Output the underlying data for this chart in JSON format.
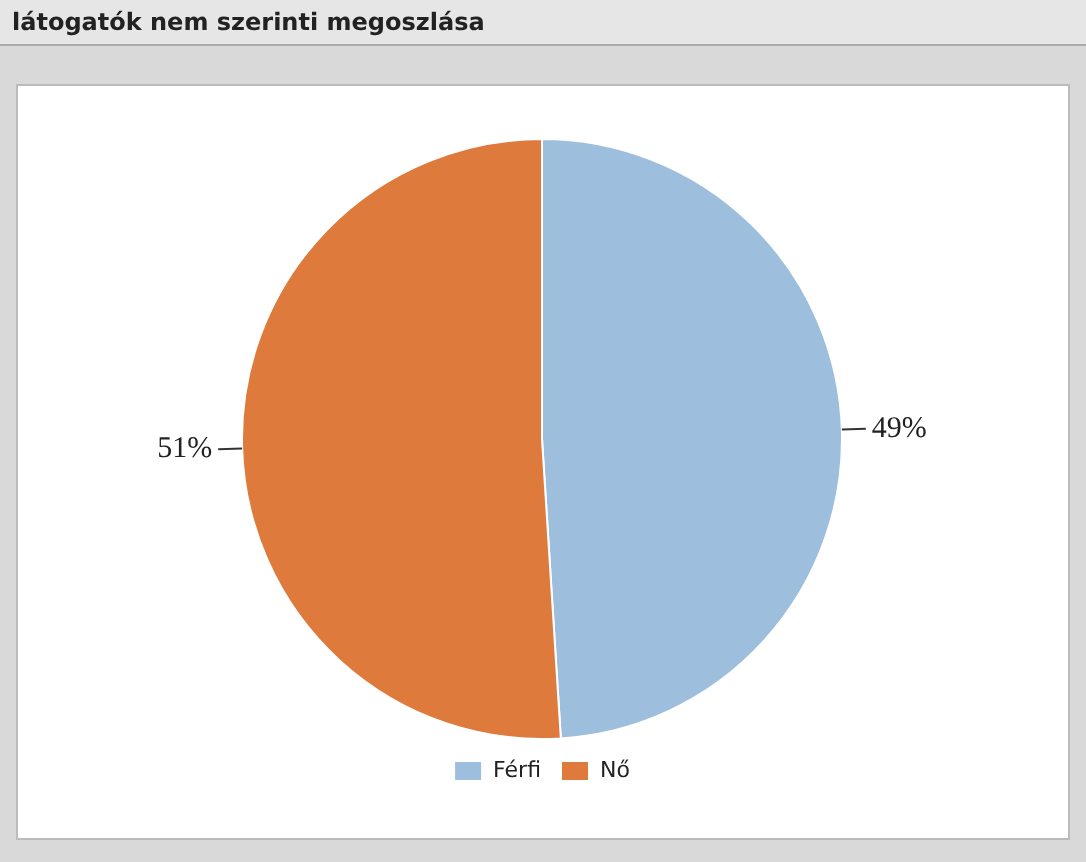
{
  "chart_data": {
    "type": "pie",
    "title": "látogatók nem szerinti megoszlása",
    "categories": [
      "Férfi",
      "Nő"
    ],
    "values": [
      49,
      51
    ],
    "colors": [
      "#9dbedd",
      "#dd7a3c"
    ],
    "value_labels": [
      "49%",
      "51%"
    ],
    "legend": "bottom"
  }
}
